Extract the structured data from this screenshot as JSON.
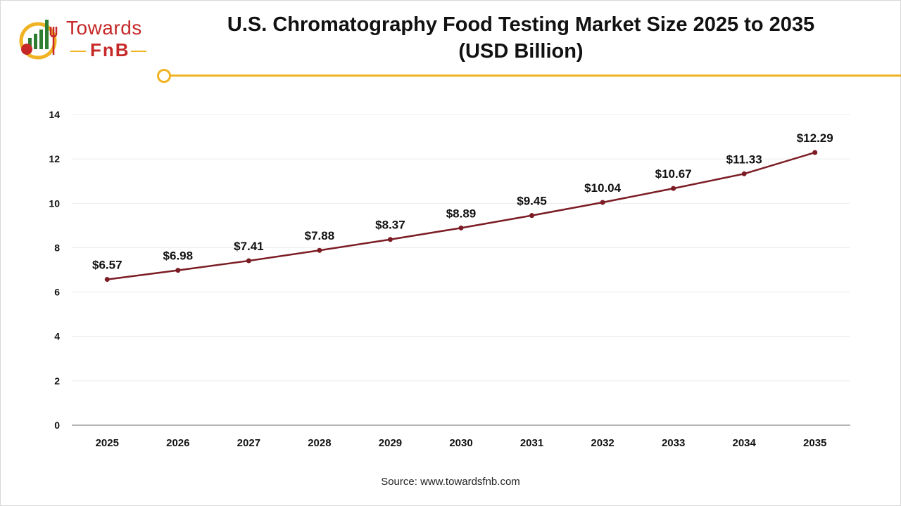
{
  "header": {
    "logo_top": "Towards",
    "logo_bottom": "FnB",
    "title_line1": "U.S. Chromatography Food Testing Market Size 2025 to 2035",
    "title_line2": "(USD Billion)"
  },
  "colors": {
    "line": "#7b1c24",
    "accent": "#f0b323",
    "logo_red": "#c62828",
    "logo_green": "#2e7d32"
  },
  "chart_data": {
    "type": "line",
    "title": "U.S. Chromatography Food Testing Market Size 2025 to 2035 (USD Billion)",
    "xlabel": "",
    "ylabel": "",
    "categories": [
      "2025",
      "2026",
      "2027",
      "2028",
      "2029",
      "2030",
      "2031",
      "2032",
      "2033",
      "2034",
      "2035"
    ],
    "series": [
      {
        "values": [
          6.57,
          6.98,
          7.41,
          7.88,
          8.37,
          8.89,
          9.45,
          10.04,
          10.67,
          11.33,
          12.29
        ],
        "labels": [
          "$6.57",
          "$6.98",
          "$7.41",
          "$7.88",
          "$8.37",
          "$8.89",
          "$9.45",
          "$10.04",
          "$10.67",
          "$11.33",
          "$12.29"
        ]
      }
    ],
    "ylim": [
      0,
      14
    ],
    "yticks": [
      0,
      2,
      4,
      6,
      8,
      10,
      12,
      14
    ],
    "grid": true,
    "legend": "none"
  },
  "footer": {
    "source": "Source: www.towardsfnb.com"
  }
}
